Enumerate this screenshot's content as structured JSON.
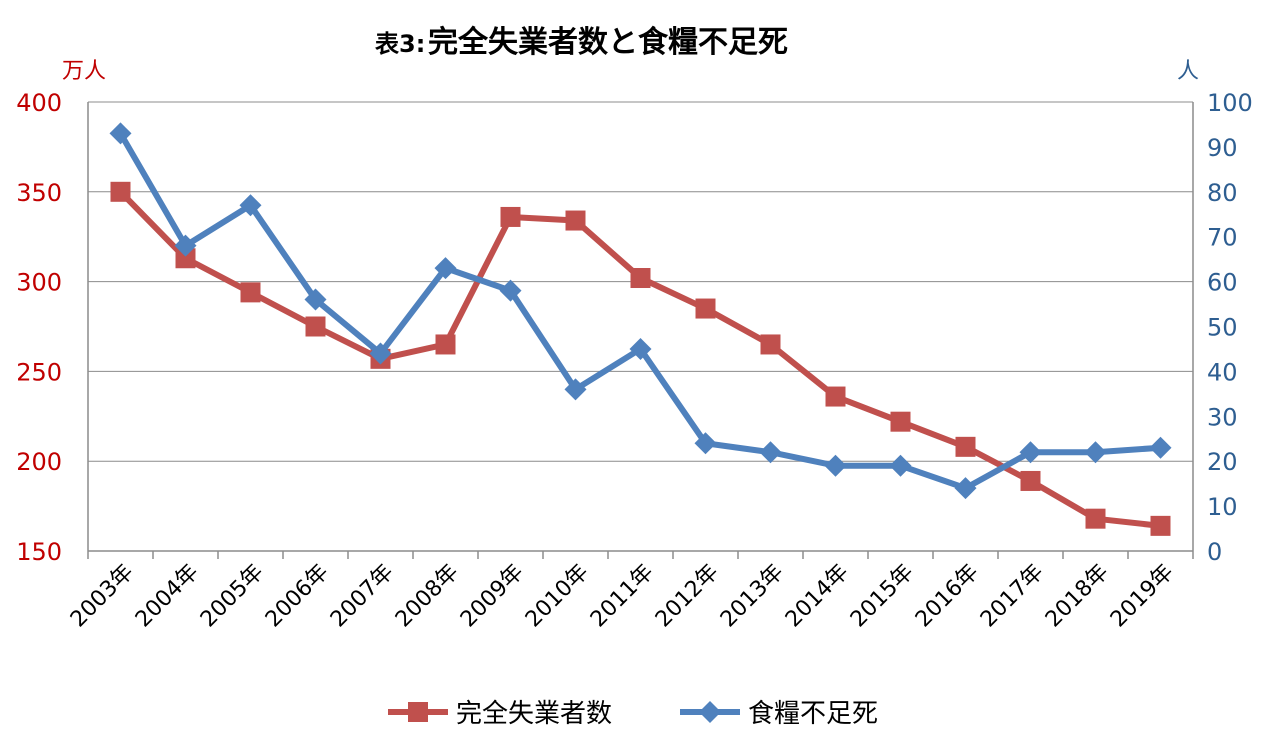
{
  "chart_data": {
    "type": "line",
    "title_prefix": "表3:",
    "title": "完全失業者数と食糧不足死",
    "categories": [
      "2003年",
      "2004年",
      "2005年",
      "2006年",
      "2007年",
      "2008年",
      "2009年",
      "2010年",
      "2011年",
      "2012年",
      "2013年",
      "2014年",
      "2015年",
      "2016年",
      "2017年",
      "2018年",
      "2019年"
    ],
    "left_axis": {
      "unit": "万人",
      "ylim": [
        150,
        400
      ],
      "ticks": [
        "400",
        "350",
        "300",
        "250",
        "200",
        "150"
      ],
      "color": "#C00000"
    },
    "right_axis": {
      "unit": "人",
      "ylim": [
        0,
        100
      ],
      "ticks": [
        "100",
        "90",
        "80",
        "70",
        "60",
        "50",
        "40",
        "30",
        "20",
        "10",
        "0"
      ],
      "color": "#2E5E91"
    },
    "grid": true,
    "legend_position": "bottom",
    "series": [
      {
        "name": "完全失業者数",
        "axis": "left",
        "color": "#C0504D",
        "marker": "square",
        "values": [
          350,
          313,
          294,
          275,
          257,
          265,
          336,
          334,
          302,
          285,
          265,
          236,
          222,
          208,
          189,
          168,
          164
        ]
      },
      {
        "name": "食糧不足死",
        "axis": "right",
        "color": "#4F81BD",
        "marker": "diamond",
        "values": [
          93,
          68,
          77,
          56,
          44,
          63,
          58,
          36,
          45,
          24,
          22,
          19,
          19,
          14,
          22,
          22,
          23
        ]
      }
    ]
  }
}
